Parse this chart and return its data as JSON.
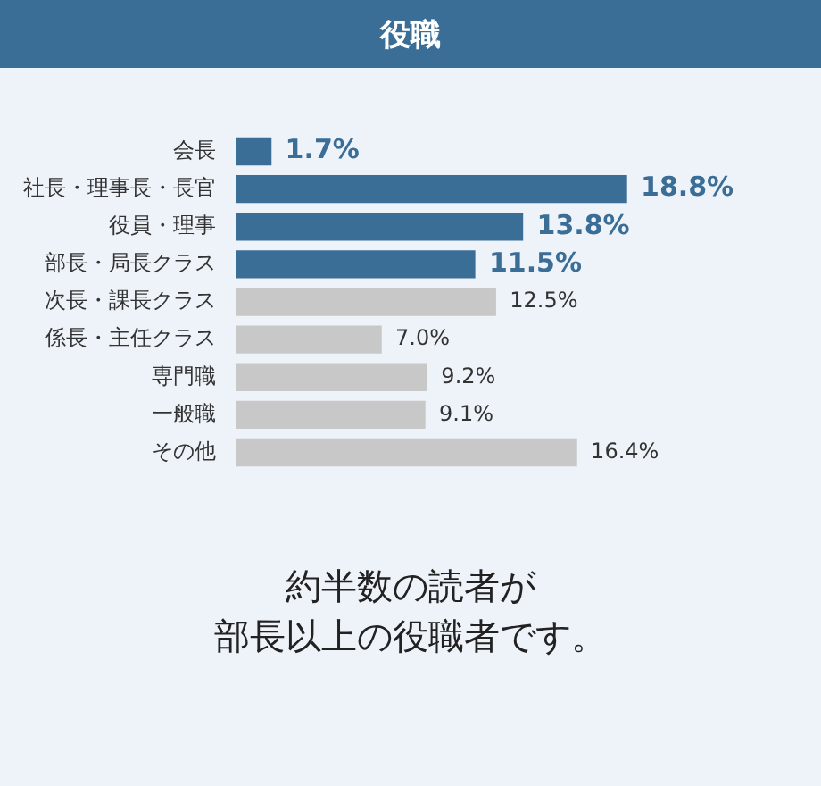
{
  "chart_data": {
    "type": "bar",
    "orientation": "horizontal",
    "title": "役職",
    "categories": [
      "会長",
      "社長・理事長・長官",
      "役員・理事",
      "部長・局長クラス",
      "次長・課長クラス",
      "係長・主任クラス",
      "専門職",
      "一般職",
      "その他"
    ],
    "values": [
      1.7,
      18.8,
      13.8,
      11.5,
      12.5,
      7.0,
      9.2,
      9.1,
      16.4
    ],
    "colors": [
      "#3b6e96",
      "#3b6e96",
      "#3b6e96",
      "#3b6e96",
      "#c8c8c8",
      "#c8c8c8",
      "#c8c8c8",
      "#c8c8c8",
      "#c8c8c8"
    ],
    "value_labels": [
      "1.7%",
      "18.8%",
      "13.8%",
      "11.5%",
      "12.5%",
      "7.0%",
      "9.2%",
      "9.1%",
      "16.4%"
    ],
    "legend": false,
    "annotations": [
      "約半数の読者が",
      "部長以上の役職者です。"
    ]
  }
}
